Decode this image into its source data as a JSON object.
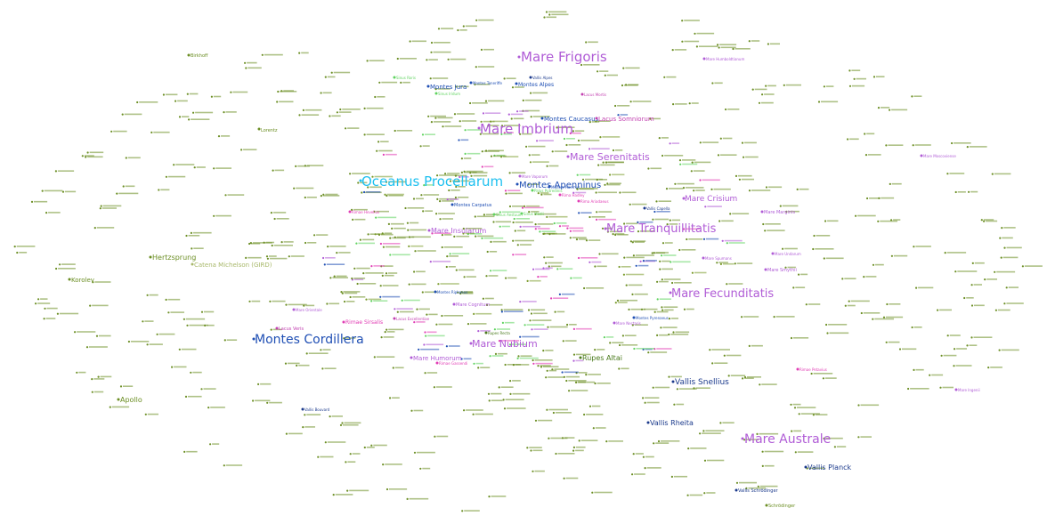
{
  "colors": {
    "crater": "#6b8e23",
    "mare": "#b05cd6",
    "oceanus": "#1ec0ef",
    "montes": "#1f4fb4",
    "vallis": "#1b3a8c",
    "rima": "#e13cb4",
    "rupes": "#4a7a1c",
    "catena": "#a8b86a",
    "lacus": "#c23fb0",
    "palus": "#5fd35f"
  },
  "labels": {
    "mare_frigoris": "Mare Frigoris",
    "mare_imbrium": "Mare Imbrium",
    "oceanus_procellarum": "Oceanus Procellarum",
    "mare_serenitatis": "Mare Serenitatis",
    "montes_apenninus": "Montes Apenninus",
    "mare_tranquillitatis": "Mare Tranquillitatis",
    "mare_crisium": "Mare Crisium",
    "mare_fecunditatis": "Mare Fecunditatis",
    "montes_cordillera": "Montes Cordillera",
    "mare_nubium": "Mare Nubium",
    "mare_insularum": "Mare Insularum",
    "mare_humorum": "Mare Humorum",
    "mare_cognitum": "Mare Cognitum",
    "mare_australe": "Mare Australe",
    "vallis_snellius": "Vallis Snellius",
    "vallis_rheita": "Vallis Rheita",
    "vallis_planck": "Vallis Planck",
    "rupes_altai": "Rupes Altai",
    "montes_jura": "Montes Jura",
    "montes_alpes": "Montes Alpes",
    "montes_caucasus": "Montes Caucasus",
    "lacus_somniorum": "Lacus Somniorum",
    "montes_carpatus": "Montes Carpatus",
    "hertzsprung": "Hertzsprung",
    "catena_michelson": "Catena Michelson (GIRD)",
    "korolev": "Korolev",
    "apollo": "Apollo",
    "lorentz": "Lorentz",
    "mare_smythii": "Mare Smythii",
    "mare_marginis": "Mare Marginis",
    "rimae_sirsalis": "Rimae Sirsalis",
    "lacus_veris": "Lacus Veris",
    "vallis_bouvard": "Vallis Bouvard",
    "vallis_schrodinger": "Vallis Schrödinger",
    "schrodinger": "Schrödinger",
    "birkhoff": "Birkhoff",
    "mare_vaporum": "Mare Vaporum",
    "sinus_medii": "Sinus Medii",
    "sinus_aestuum": "Sinus Aestuum",
    "mare_orientale": "Mare Orientale",
    "rima_hadley": "Rima Hadley",
    "palus_putredinis": "Palus Putredinis",
    "mare_undarum": "Mare Undarum",
    "mare_spumans": "Mare Spumans",
    "mare_nectaris": "Mare Nectaris",
    "sinus_iridum": "Sinus Iridum",
    "vallis_alpes": "Vallis Alpes",
    "rimae_hevelius": "Rimae Hevelius",
    "lacus_mortis": "Lacus Mortis",
    "mare_moscoviense": "Mare Moscoviense",
    "mare_ingenii": "Mare Ingenii",
    "montes_pyrenaeus": "Montes Pyrenaeus",
    "montes_riphaeus": "Montes Riphaeus",
    "montes_haemus": "Montes Haemus",
    "mare_humboldtianum": "Mare Humboldtianum",
    "rimae_petavius": "Rimae Petavius",
    "rimae_gassendi": "Rimae Gassendi",
    "vallis_capella": "Vallis Capella",
    "sinus_roris": "Sinus Roris",
    "lacus_excellentiae": "Lacus Excellentiae",
    "rima_ariadaeus": "Rima Ariadaeus",
    "rupes_recta": "Rupes Recta",
    "montes_teneriffe": "Montes Teneriffe"
  }
}
